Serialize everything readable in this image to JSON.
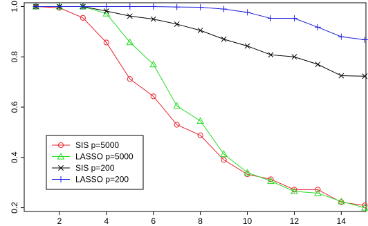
{
  "chart_data": {
    "type": "line",
    "title": "",
    "xlabel": "",
    "ylabel": "",
    "xlim": [
      0.5,
      15.05
    ],
    "ylim": [
      0.185,
      1.015
    ],
    "x_ticks": [
      2,
      4,
      6,
      8,
      10,
      12,
      14
    ],
    "y_ticks": [
      0.2,
      0.4,
      0.6,
      0.8,
      1.0
    ],
    "y_tick_labels": [
      "0.2",
      "0.4",
      "0.6",
      "0.8",
      "1.0"
    ],
    "grid": false,
    "legend_position": "bottom-left",
    "x": [
      1,
      2,
      3,
      4,
      5,
      6,
      7,
      8,
      9,
      10,
      11,
      12,
      13,
      14,
      15
    ],
    "series": [
      {
        "name": "SIS p=5000",
        "color": "#e8202a",
        "marker": "circle",
        "values": [
          1.0,
          0.995,
          0.955,
          0.857,
          0.712,
          0.643,
          0.53,
          0.488,
          0.39,
          0.333,
          0.313,
          0.272,
          0.272,
          0.222,
          0.209
        ]
      },
      {
        "name": "LASSO p=5000",
        "color": "#22dd22",
        "marker": "triangle",
        "values": [
          1.0,
          1.0,
          1.0,
          0.972,
          0.858,
          0.77,
          0.605,
          0.545,
          0.413,
          0.34,
          0.306,
          0.265,
          0.258,
          0.225,
          0.2
        ]
      },
      {
        "name": "SIS p=200",
        "color": "#000000",
        "marker": "x",
        "values": [
          1.0,
          1.0,
          1.0,
          0.982,
          0.962,
          0.95,
          0.93,
          0.905,
          0.87,
          0.843,
          0.808,
          0.8,
          0.77,
          0.725,
          0.723
        ]
      },
      {
        "name": "LASSO p=200",
        "color": "#1a1ae0",
        "marker": "plus",
        "values": [
          1.0,
          1.0,
          1.0,
          1.0,
          1.0,
          1.0,
          0.998,
          0.997,
          0.99,
          0.977,
          0.953,
          0.953,
          0.918,
          0.88,
          0.868
        ]
      }
    ]
  }
}
